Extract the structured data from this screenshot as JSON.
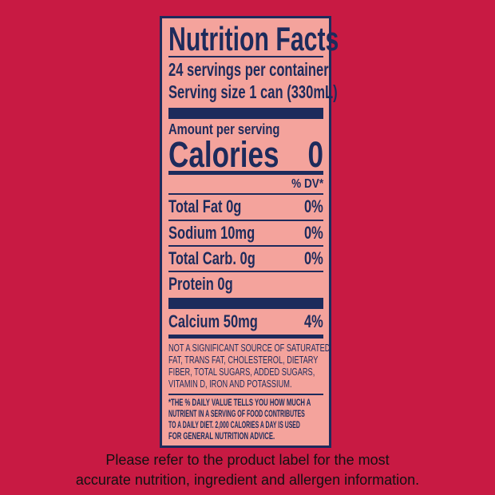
{
  "label": {
    "title": "Nutrition Facts",
    "servings": "24 servings per container",
    "serving_size": "Serving size 1 can (330mL)",
    "amount_per_serving": "Amount per serving",
    "calories_label": "Calories",
    "calories_value": "0",
    "dv_header": "% DV*",
    "nutrients": [
      {
        "name": "Total Fat 0g",
        "dv": "0%"
      },
      {
        "name": "Sodium 10mg",
        "dv": "0%"
      },
      {
        "name": "Total Carb. 0g",
        "dv": "0%"
      },
      {
        "name": "Protein 0g",
        "dv": ""
      }
    ],
    "calcium": {
      "name": "Calcium 50mg",
      "dv": "4%"
    },
    "not_significant": [
      "NOT A SIGNIFICANT SOURCE OF SATURATED",
      "FAT, TRANS FAT, CHOLESTEROL, DIETARY",
      "FIBER, TOTAL SUGARS, ADDED SUGARS,",
      "VITAMIN D, IRON AND POTASSIUM."
    ],
    "daily_value_note": [
      "*THE % DAILY VALUE TELLS YOU HOW MUCH A",
      "NUTRIENT IN A SERVING OF FOOD CONTRIBUTES",
      "TO A DAILY DIET. 2,000 CALORIES A DAY IS USED",
      "FOR GENERAL NUTRITION ADVICE."
    ]
  },
  "disclaimer": [
    "Please refer to the product label for the most",
    "accurate nutrition, ingredient and allergen information."
  ],
  "colors": {
    "background": "#c81a43",
    "label": "#f4a39c",
    "ink": "#1d2b5c"
  }
}
